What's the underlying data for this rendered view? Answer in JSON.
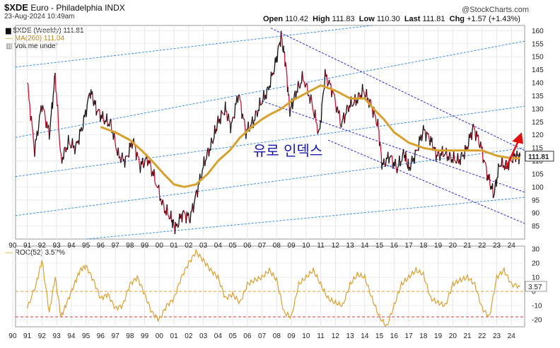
{
  "header": {
    "symbol": "$XDE",
    "name": "Euro - Philadelphia",
    "exchange": "INDX",
    "date": "23-Aug-2024 10:49am",
    "open_label": "Open",
    "open": "110.42",
    "high_label": "High",
    "high": "111.83",
    "low_label": "Low",
    "low": "110.30",
    "last_label": "Last",
    "last": "111.81",
    "chg_label": "Chg",
    "chg": "+1.57 (+1.43%)",
    "brand": "@StockCharts.com"
  },
  "legend": {
    "price": "$XDE (Weekly) 111.81",
    "ma": "MA(260) 111.04",
    "volume": "Volume undef",
    "roc": "ROC(52) 3.57%"
  },
  "annotation": {
    "korean_label": "유로 인덱스"
  },
  "colors": {
    "price_up": "#111111",
    "price_down": "#c8102e",
    "ma": "#d6a12c",
    "channel": "#2a2ad8",
    "trend_light": "#3b8fe6",
    "roc": "#d9a030",
    "ref_red": "#e03030",
    "arrow": "#e01010"
  },
  "chart_data": [
    {
      "type": "line",
      "title": "$XDE Euro - Philadelphia INDX (Weekly)",
      "x_ticks": [
        "90",
        "91",
        "92",
        "93",
        "94",
        "95",
        "96",
        "97",
        "98",
        "99",
        "00",
        "01",
        "02",
        "03",
        "04",
        "05",
        "06",
        "07",
        "08",
        "09",
        "10",
        "11",
        "12",
        "13",
        "14",
        "15",
        "16",
        "17",
        "18",
        "19",
        "20",
        "21",
        "22",
        "23",
        "24"
      ],
      "ylim": [
        80,
        162
      ],
      "y_ticks": [
        85,
        90,
        95,
        100,
        105,
        110,
        115,
        120,
        125,
        130,
        135,
        140,
        145,
        150,
        155,
        160
      ],
      "last_value_label": "111.81",
      "series": [
        {
          "name": "$XDE (Weekly)",
          "x": [
            1991.0,
            1991.5,
            1992.0,
            1992.5,
            1992.9,
            1993.3,
            1993.8,
            1994.3,
            1994.8,
            1995.3,
            1995.7,
            1996.2,
            1996.7,
            1997.2,
            1997.7,
            1998.2,
            1998.7,
            1999.2,
            1999.7,
            2000.3,
            2000.8,
            2001.1,
            2001.6,
            2002.1,
            2002.6,
            2003.1,
            2003.6,
            2004.0,
            2004.5,
            2004.9,
            2005.4,
            2005.9,
            2006.4,
            2006.9,
            2007.4,
            2007.9,
            2008.3,
            2008.6,
            2008.9,
            2009.3,
            2009.8,
            2010.4,
            2010.9,
            2011.3,
            2011.8,
            2012.4,
            2012.9,
            2013.4,
            2013.9,
            2014.4,
            2014.9,
            2015.2,
            2015.7,
            2016.2,
            2016.7,
            2017.0,
            2017.5,
            2018.0,
            2018.5,
            2018.9,
            2019.4,
            2019.9,
            2020.4,
            2020.9,
            2021.4,
            2021.9,
            2022.4,
            2022.8,
            2023.2,
            2023.7,
            2024.2,
            2024.6
          ],
          "y": [
            140,
            114,
            132,
            120,
            143,
            110,
            117,
            115,
            124,
            137,
            130,
            126,
            124,
            112,
            110,
            118,
            108,
            111,
            103,
            92,
            88,
            84,
            90,
            88,
            99,
            110,
            117,
            125,
            130,
            123,
            136,
            121,
            125,
            132,
            137,
            147,
            158,
            148,
            129,
            136,
            142,
            132,
            120,
            143,
            137,
            124,
            131,
            133,
            137,
            132,
            124,
            108,
            112,
            107,
            113,
            107,
            113,
            122,
            118,
            112,
            113,
            111,
            110,
            114,
            123,
            116,
            104,
            97,
            109,
            108,
            112,
            111.81
          ]
        },
        {
          "name": "MA(260)",
          "x": [
            1996.0,
            1997.0,
            1998.0,
            1998.8,
            1999.5,
            2000.3,
            2001.0,
            2001.7,
            2002.5,
            2003.3,
            2004.0,
            2004.8,
            2005.5,
            2006.3,
            2007.0,
            2007.6,
            2008.3,
            2009.0,
            2010.0,
            2011.0,
            2012.0,
            2013.0,
            2014.0,
            2014.6,
            2015.3,
            2016.0,
            2017.0,
            2018.0,
            2019.0,
            2020.0,
            2021.0,
            2022.0,
            2023.0,
            2024.0,
            2024.6
          ],
          "y": [
            123,
            121,
            118,
            114,
            110,
            105,
            101,
            100,
            101,
            105,
            110,
            114,
            119,
            123,
            126,
            128,
            130,
            133,
            136,
            139,
            137,
            134,
            134,
            130,
            126,
            121,
            117,
            115,
            114,
            114,
            114,
            114,
            112,
            111,
            111.04
          ]
        }
      ]
    },
    {
      "type": "line",
      "title": "ROC(52)",
      "ylim": [
        -25,
        32
      ],
      "y_ticks": [
        -20,
        -10,
        0,
        10,
        20,
        30
      ],
      "reference_lines": [
        0,
        -18
      ],
      "last_value_label": "3.57",
      "series": [
        {
          "name": "ROC(52)",
          "x": [
            1991.0,
            1991.6,
            1992.0,
            1992.5,
            1992.9,
            1993.3,
            1993.7,
            1994.2,
            1994.6,
            1995.0,
            1995.5,
            1996.0,
            1996.5,
            1997.0,
            1997.5,
            1998.0,
            1998.5,
            1999.0,
            1999.5,
            2000.0,
            2000.5,
            2001.0,
            2001.5,
            2002.0,
            2002.5,
            2003.0,
            2003.5,
            2004.0,
            2004.5,
            2005.0,
            2005.5,
            2006.0,
            2006.5,
            2007.0,
            2007.5,
            2008.0,
            2008.5,
            2009.0,
            2009.5,
            2010.0,
            2010.5,
            2011.0,
            2011.5,
            2012.0,
            2012.5,
            2013.0,
            2013.5,
            2014.0,
            2014.5,
            2015.0,
            2015.5,
            2016.0,
            2016.5,
            2017.0,
            2017.5,
            2018.0,
            2018.5,
            2019.0,
            2019.5,
            2020.0,
            2020.5,
            2021.0,
            2021.5,
            2022.0,
            2022.5,
            2023.0,
            2023.5,
            2024.0,
            2024.6
          ],
          "y": [
            -12,
            5,
            22,
            -15,
            10,
            -18,
            -8,
            5,
            15,
            18,
            8,
            -5,
            -2,
            -12,
            -10,
            5,
            10,
            -2,
            -15,
            -20,
            -10,
            -5,
            10,
            20,
            28,
            22,
            15,
            10,
            -5,
            -2,
            -8,
            5,
            8,
            10,
            15,
            8,
            -15,
            -18,
            5,
            10,
            15,
            5,
            -5,
            -8,
            -10,
            5,
            12,
            10,
            -5,
            -18,
            -25,
            -10,
            5,
            10,
            15,
            12,
            -5,
            -8,
            -10,
            5,
            8,
            10,
            5,
            -12,
            -18,
            10,
            15,
            5,
            3.57
          ]
        }
      ]
    }
  ]
}
